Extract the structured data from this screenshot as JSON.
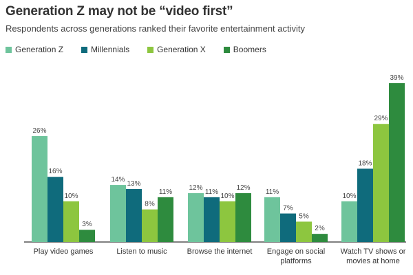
{
  "chart_data": {
    "type": "bar",
    "title": "Generation Z may not be “video first”",
    "subtitle": "Respondents across generations ranked their favorite entertainment activity",
    "categories": [
      [
        "Play video games"
      ],
      [
        "Listen to music"
      ],
      [
        "Browse the internet"
      ],
      [
        "Engage on social",
        "platforms"
      ],
      [
        "Watch TV shows or",
        "movies at home"
      ]
    ],
    "series": [
      {
        "name": "Generation Z",
        "color": "#6ec49c",
        "values": [
          26,
          14,
          12,
          11,
          10
        ]
      },
      {
        "name": "Millennials",
        "color": "#0f6b7c",
        "values": [
          16,
          13,
          11,
          7,
          18
        ]
      },
      {
        "name": "Generation X",
        "color": "#8dc63f",
        "values": [
          10,
          8,
          10,
          5,
          29
        ]
      },
      {
        "name": "Boomers",
        "color": "#2e8b3e",
        "values": [
          3,
          11,
          12,
          2,
          39
        ]
      }
    ],
    "value_suffix": "%",
    "ylim": [
      0,
      39
    ],
    "grid": false,
    "legend_position": "top-left"
  }
}
